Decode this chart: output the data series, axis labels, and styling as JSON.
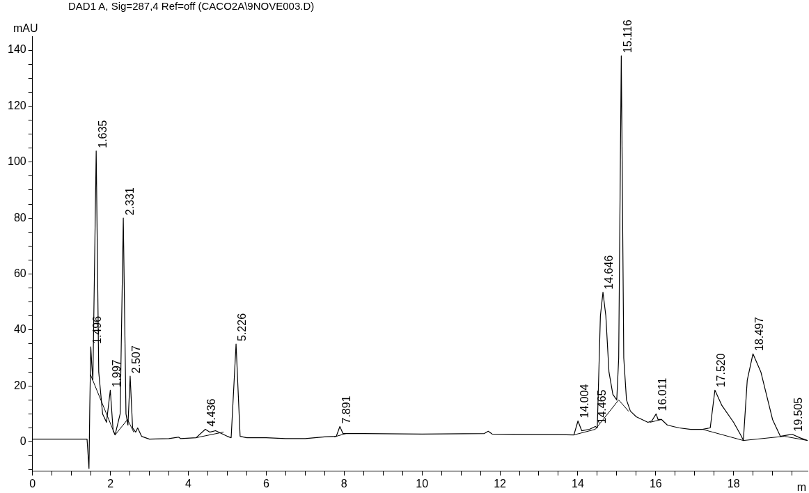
{
  "chart_data": {
    "type": "line",
    "title": "DAD1 A, Sig=287,4 Ref=off (CACO2A\\9NOVE003.D)",
    "xlabel": "m",
    "ylabel": "mAU",
    "xlim": [
      0,
      19.9
    ],
    "ylim": [
      -10.5,
      145
    ],
    "xticks": [
      0,
      {
        "value": 0.5,
        "label": null
      },
      2,
      {
        "value": 1,
        "label": null
      },
      {
        "value": 1.5,
        "label": null
      },
      {
        "value": 2.5,
        "label": null
      },
      {
        "value": 3,
        "label": null
      },
      {
        "value": 3.5,
        "label": null
      },
      4,
      {
        "value": 4.5,
        "label": null
      },
      {
        "value": 5,
        "label": null
      },
      {
        "value": 5.5,
        "label": null
      },
      6,
      {
        "value": 6.5,
        "label": null
      },
      {
        "value": 7,
        "label": null
      },
      {
        "value": 7.5,
        "label": null
      },
      8,
      {
        "value": 8.5,
        "label": null
      },
      {
        "value": 9,
        "label": null
      },
      {
        "value": 9.5,
        "label": null
      },
      10,
      {
        "value": 10.5,
        "label": null
      },
      {
        "value": 11,
        "label": null
      },
      {
        "value": 11.5,
        "label": null
      },
      12,
      {
        "value": 12.5,
        "label": null
      },
      {
        "value": 13,
        "label": null
      },
      {
        "value": 13.5,
        "label": null
      },
      14,
      {
        "value": 14.5,
        "label": null
      },
      {
        "value": 15,
        "label": null
      },
      {
        "value": 15.5,
        "label": null
      },
      16,
      {
        "value": 16.5,
        "label": null
      },
      {
        "value": 17,
        "label": null
      },
      {
        "value": 17.5,
        "label": null
      },
      18,
      {
        "value": 18.5,
        "label": null
      },
      {
        "value": 19,
        "label": null
      },
      {
        "value": 19.5,
        "label": null
      }
    ],
    "yticks": [
      {
        "value": -10,
        "label": null
      },
      {
        "value": -5,
        "label": null
      },
      0,
      {
        "value": 5,
        "label": null
      },
      {
        "value": 10,
        "label": null
      },
      {
        "value": 15,
        "label": null
      },
      20,
      {
        "value": 25,
        "label": null
      },
      {
        "value": 30,
        "label": null
      },
      {
        "value": 35,
        "label": null
      },
      40,
      {
        "value": 45,
        "label": null
      },
      {
        "value": 50,
        "label": null
      },
      {
        "value": 55,
        "label": null
      },
      60,
      {
        "value": 65,
        "label": null
      },
      {
        "value": 70,
        "label": null
      },
      {
        "value": 75,
        "label": null
      },
      80,
      {
        "value": 85,
        "label": null
      },
      {
        "value": 90,
        "label": null
      },
      {
        "value": 95,
        "label": null
      },
      100,
      {
        "value": 105,
        "label": null
      },
      {
        "value": 110,
        "label": null
      },
      {
        "value": 115,
        "label": null
      },
      120,
      {
        "value": 125,
        "label": null
      },
      {
        "value": 130,
        "label": null
      },
      {
        "value": 135,
        "label": null
      },
      140
    ],
    "grid": false,
    "legend": false,
    "marker": "none",
    "series": [
      {
        "color": "#000000",
        "x": [
          0,
          1.4,
          1.45,
          1.47,
          1.496,
          1.52,
          1.55,
          1.6,
          1.635,
          1.7,
          1.8,
          1.9,
          1.997,
          2.07,
          2.12,
          2.25,
          2.331,
          2.4,
          2.45,
          2.507,
          2.57,
          2.65,
          2.7,
          2.8,
          3,
          3.5,
          3.75,
          3.8,
          4.2,
          4.436,
          4.55,
          4.7,
          5,
          5.1,
          5.226,
          5.33,
          5.5,
          6,
          6.5,
          7,
          7.5,
          7.8,
          7.891,
          7.97,
          8.5,
          10,
          11.6,
          11.7,
          11.8,
          13.5,
          13.9,
          14.004,
          14.1,
          14.3,
          14.45,
          14.5,
          14.58,
          14.646,
          14.72,
          14.8,
          14.9,
          15,
          15.05,
          15.116,
          15.18,
          15.25,
          15.35,
          15.5,
          15.8,
          15.9,
          16.011,
          16.06,
          16.15,
          16.3,
          16.6,
          16.9,
          17.2,
          17.4,
          17.52,
          17.7,
          18,
          18.2,
          18.25,
          18.35,
          18.497,
          18.7,
          19,
          19.2,
          19.4,
          19.505,
          19.7,
          19.9
        ],
        "values": [
          1,
          1,
          -9.5,
          12,
          34,
          28,
          22,
          70,
          104,
          25,
          10,
          7,
          18.5,
          4,
          2.5,
          10,
          80,
          10,
          6,
          23.5,
          5,
          3.5,
          5,
          2,
          1,
          1.2,
          1.7,
          1.2,
          1.5,
          4.5,
          3.5,
          4,
          2,
          1.5,
          35,
          2,
          1.5,
          1.5,
          1.2,
          1.2,
          1.8,
          2,
          5.5,
          3,
          3,
          2.8,
          3,
          3.8,
          2.8,
          2.6,
          2.5,
          7.5,
          4,
          4.5,
          5.5,
          5,
          45,
          53.5,
          45,
          25,
          17,
          15,
          30,
          138,
          30,
          15,
          11,
          9,
          7,
          7.5,
          10,
          8,
          8,
          6,
          5,
          4.5,
          4.5,
          5,
          18.5,
          13,
          7,
          2,
          0.5,
          22,
          31.5,
          25,
          8,
          2,
          2.5,
          2.7,
          1.5,
          0.5
        ]
      },
      {
        "color": "#000000",
        "x": [
          1.49,
          2.12,
          2.44,
          2.6,
          2.61,
          4.2,
          4.9,
          4.91,
          7.75,
          8.05,
          8.06,
          13.9,
          14.45,
          15.05,
          15.3,
          15.31,
          15.85,
          16.15,
          16.16,
          17.2,
          18.25,
          19.3,
          19.9
        ],
        "values": [
          24,
          2.5,
          8,
          3.5,
          null,
          1.5,
          3.5,
          null,
          1.8,
          3,
          null,
          2.5,
          4.5,
          15,
          11,
          null,
          7,
          8,
          null,
          4.5,
          0.5,
          2,
          0.5
        ]
      }
    ],
    "annotations": [
      {
        "text": "1.496",
        "x": 1.496,
        "y": 34
      },
      {
        "text": "1.635",
        "x": 1.635,
        "y": 104
      },
      {
        "text": "1.997",
        "x": 1.997,
        "y": 18.5
      },
      {
        "text": "2.331",
        "x": 2.331,
        "y": 80
      },
      {
        "text": "2.507",
        "x": 2.507,
        "y": 23.5
      },
      {
        "text": "4.436",
        "x": 4.436,
        "y": 4.5
      },
      {
        "text": "5.226",
        "x": 5.226,
        "y": 35
      },
      {
        "text": "7.891",
        "x": 7.891,
        "y": 5.5
      },
      {
        "text": "14.004",
        "x": 14.004,
        "y": 7.5
      },
      {
        "text": "14.465",
        "x": 14.465,
        "y": 5.5
      },
      {
        "text": "14.646",
        "x": 14.646,
        "y": 53.5
      },
      {
        "text": "15.116",
        "x": 15.116,
        "y": 138
      },
      {
        "text": "16.011",
        "x": 16.011,
        "y": 10
      },
      {
        "text": "17.520",
        "x": 17.52,
        "y": 18.5
      },
      {
        "text": "18.497",
        "x": 18.497,
        "y": 31.5
      },
      {
        "text": "19.505",
        "x": 19.505,
        "y": 2.7
      }
    ]
  }
}
